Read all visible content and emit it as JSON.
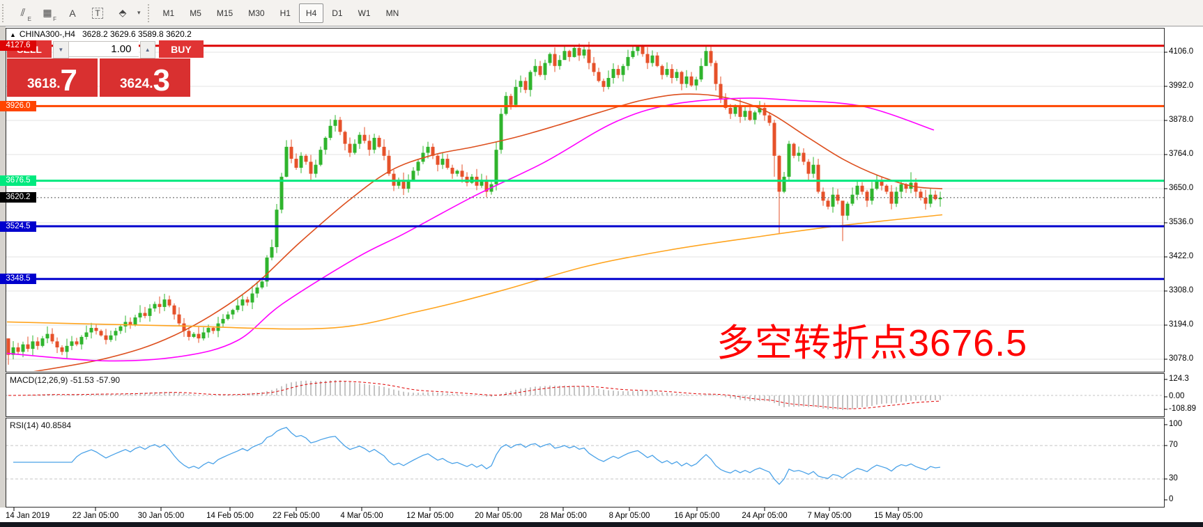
{
  "toolbar": {
    "tools": [
      {
        "name": "channel-lines-icon",
        "glyph": "⫽",
        "sub": "E"
      },
      {
        "name": "fibonacci-grid-icon",
        "glyph": "▦",
        "sub": "F"
      },
      {
        "name": "text-label-icon",
        "glyph": "A",
        "sub": ""
      },
      {
        "name": "text-box-icon",
        "glyph": "T",
        "sub": ""
      },
      {
        "name": "arrows-icon",
        "glyph": "⬘",
        "sub": ""
      }
    ],
    "dropdown_caret": "▾",
    "timeframes": [
      "M1",
      "M5",
      "M15",
      "M30",
      "H1",
      "H4",
      "D1",
      "W1",
      "MN"
    ],
    "active_timeframe": "H4"
  },
  "chart_header": {
    "collapse_glyph": "▲",
    "symbol_period": "CHINA300-,H4",
    "ohlc": "3628.2 3629.6 3589.8 3620.2"
  },
  "order_panel": {
    "sell_label": "SELL",
    "buy_label": "BUY",
    "volume": "1.00",
    "spin_down_glyph": "▼",
    "spin_up_glyph": "▲",
    "sell_price": {
      "main": "3618",
      "dot": ".",
      "big": "7"
    },
    "buy_price": {
      "main": "3624",
      "dot": ".",
      "big": "3"
    }
  },
  "annotation": {
    "text": "多空转折点3676.5",
    "color": "#FF0000"
  },
  "colors": {
    "bull": "#2fb42d",
    "bear": "#e6512a",
    "ma_fast": "#dd4f1e",
    "ma_mid": "#ff00ff",
    "ma_slow": "#ffa41e",
    "macd_hist": "#b5b5b5",
    "macd_signal": "#e00000",
    "rsi_line": "#4aa2e8",
    "grid": "#e3e3e3",
    "level_dash": "#c4c4c4",
    "current_line": "#555555"
  },
  "chart_data": {
    "type": "candlestick+indicators",
    "symbol": "CHINA300-",
    "period": "H4",
    "price_axis": {
      "ticks": [
        "4106.0",
        "3992.0",
        "3878.0",
        "3764.0",
        "3650.0",
        "3536.0",
        "3422.0",
        "3308.0",
        "3194.0",
        "3078.0"
      ],
      "ylim": [
        3040,
        4160
      ]
    },
    "hlines": [
      {
        "price": 4127.6,
        "label": "4127.6",
        "color": "#dd0505",
        "width": 3
      },
      {
        "price": 3926.0,
        "label": "3926.0",
        "color": "#ff4500",
        "width": 3
      },
      {
        "price": 3676.5,
        "label": "3676.5",
        "color": "#00e97e",
        "width": 3
      },
      {
        "price": 3524.5,
        "label": "3524.5",
        "color": "#0000cd",
        "width": 3
      },
      {
        "price": 3348.5,
        "label": "3348.5",
        "color": "#0000cd",
        "width": 3
      }
    ],
    "current_price": {
      "value": 3620.2,
      "label": "3620.2",
      "badge_bg": "#000000"
    },
    "candles": {
      "x_start": 12,
      "x_step": 7,
      "open_first": 3150,
      "closes": [
        3095,
        3120,
        3105,
        3130,
        3115,
        3140,
        3125,
        3150,
        3165,
        3140,
        3120,
        3105,
        3125,
        3140,
        3130,
        3155,
        3170,
        3185,
        3175,
        3160,
        3145,
        3160,
        3175,
        3190,
        3205,
        3195,
        3220,
        3235,
        3225,
        3250,
        3265,
        3255,
        3280,
        3260,
        3230,
        3200,
        3175,
        3155,
        3165,
        3150,
        3170,
        3185,
        3175,
        3200,
        3215,
        3230,
        3245,
        3260,
        3280,
        3270,
        3300,
        3320,
        3340,
        3420,
        3455,
        3580,
        3690,
        3790,
        3750,
        3720,
        3760,
        3740,
        3700,
        3730,
        3780,
        3820,
        3860,
        3880,
        3840,
        3800,
        3770,
        3800,
        3830,
        3810,
        3780,
        3820,
        3790,
        3760,
        3700,
        3660,
        3680,
        3650,
        3680,
        3710,
        3740,
        3770,
        3790,
        3760,
        3730,
        3750,
        3720,
        3700,
        3710,
        3690,
        3670,
        3690,
        3660,
        3680,
        3640,
        3665,
        3780,
        3900,
        3960,
        3930,
        3990,
        4010,
        3980,
        4040,
        4060,
        4030,
        4070,
        4100,
        4060,
        4080,
        4110,
        4090,
        4120,
        4095,
        4115,
        4070,
        4040,
        4010,
        3990,
        4020,
        4050,
        4030,
        4060,
        4090,
        4110,
        4125,
        4100,
        4070,
        4095,
        4060,
        4030,
        4050,
        4020,
        4040,
        4000,
        4025,
        3995,
        4015,
        4060,
        4110,
        4070,
        4000,
        3950,
        3920,
        3900,
        3925,
        3890,
        3910,
        3880,
        3905,
        3920,
        3895,
        3870,
        3760,
        3640,
        3690,
        3800,
        3760,
        3770,
        3740,
        3700,
        3730,
        3640,
        3610,
        3590,
        3630,
        3610,
        3560,
        3600,
        3630,
        3660,
        3640,
        3610,
        3650,
        3680,
        3660,
        3640,
        3600,
        3640,
        3665,
        3650,
        3670,
        3640,
        3620,
        3600,
        3630,
        3615,
        3620.2
      ],
      "extremes": {
        "0": [
          3150,
          3062
        ],
        "57": [
          3812,
          3688
        ],
        "114": [
          4127,
          4085
        ],
        "116": [
          4127.6,
          4088
        ],
        "129": [
          4127.6,
          4095
        ],
        "143": [
          4127,
          4060
        ],
        "157": [
          3880,
          3690
        ],
        "158": [
          3762,
          3500
        ],
        "171": [
          3605,
          3475
        ],
        "185": [
          3705,
          3635
        ],
        "191": [
          3640,
          3590
        ]
      }
    },
    "moving_averages": [
      {
        "name": "ma-fast",
        "color": "#dd4f1e",
        "points": [
          [
            10,
            3025
          ],
          [
            150,
            3082
          ],
          [
            250,
            3160
          ],
          [
            350,
            3300
          ],
          [
            430,
            3470
          ],
          [
            500,
            3610
          ],
          [
            560,
            3710
          ],
          [
            620,
            3762
          ],
          [
            680,
            3790
          ],
          [
            740,
            3822
          ],
          [
            800,
            3862
          ],
          [
            860,
            3905
          ],
          [
            920,
            3945
          ],
          [
            980,
            3966
          ],
          [
            1040,
            3955
          ],
          [
            1100,
            3908
          ],
          [
            1160,
            3820
          ],
          [
            1210,
            3748
          ],
          [
            1260,
            3694
          ],
          [
            1310,
            3658
          ],
          [
            1352,
            3650
          ]
        ]
      },
      {
        "name": "ma-mid",
        "color": "#ff00ff",
        "points": [
          [
            10,
            3100
          ],
          [
            150,
            3075
          ],
          [
            260,
            3090
          ],
          [
            340,
            3142
          ],
          [
            405,
            3265
          ],
          [
            512,
            3420
          ],
          [
            580,
            3500
          ],
          [
            680,
            3625
          ],
          [
            780,
            3737
          ],
          [
            880,
            3870
          ],
          [
            960,
            3930
          ],
          [
            1060,
            3952
          ],
          [
            1140,
            3945
          ],
          [
            1240,
            3924
          ],
          [
            1340,
            3846
          ]
        ]
      },
      {
        "name": "ma-slow",
        "color": "#ffa41e",
        "points": [
          [
            10,
            3205
          ],
          [
            250,
            3192
          ],
          [
            470,
            3184
          ],
          [
            600,
            3240
          ],
          [
            720,
            3310
          ],
          [
            840,
            3390
          ],
          [
            960,
            3445
          ],
          [
            1080,
            3487
          ],
          [
            1200,
            3525
          ],
          [
            1352,
            3563
          ]
        ]
      }
    ],
    "macd": {
      "label": "MACD(12,26,9)",
      "values_label": "-51.53 -57.90",
      "params": [
        12,
        26,
        9
      ],
      "axis_ticks": [
        "124.3",
        "0.00",
        "-108.89"
      ]
    },
    "rsi": {
      "label": "RSI(14)",
      "value_label": "40.8584",
      "period": 14,
      "levels": [
        "100",
        "70",
        "30",
        "0"
      ]
    },
    "time_axis": [
      {
        "text": "14 Jan 2019",
        "x": 8,
        "align": "left"
      },
      {
        "text": "22 Jan 05:00",
        "x": 137
      },
      {
        "text": "30 Jan 05:00",
        "x": 231
      },
      {
        "text": "14 Feb 05:00",
        "x": 330
      },
      {
        "text": "22 Feb 05:00",
        "x": 425
      },
      {
        "text": "4 Mar 05:00",
        "x": 519
      },
      {
        "text": "12 Mar 05:00",
        "x": 617
      },
      {
        "text": "20 Mar 05:00",
        "x": 715
      },
      {
        "text": "28 Mar 05:00",
        "x": 808
      },
      {
        "text": "8 Apr 05:00",
        "x": 903
      },
      {
        "text": "16 Apr 05:00",
        "x": 1000
      },
      {
        "text": "24 Apr 05:00",
        "x": 1097
      },
      {
        "text": "7 May 05:00",
        "x": 1190
      },
      {
        "text": "15 May 05:00",
        "x": 1289
      }
    ]
  }
}
